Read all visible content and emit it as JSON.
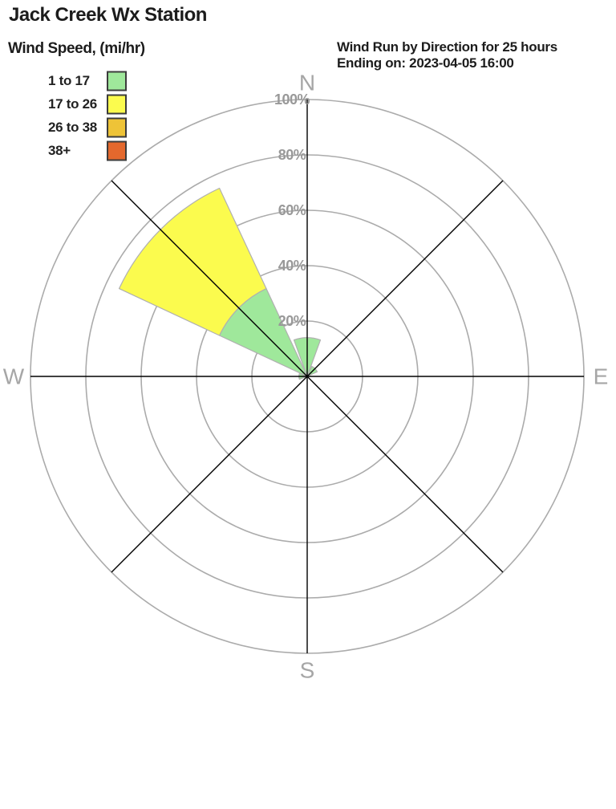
{
  "page": {
    "title": "Jack Creek Wx Station"
  },
  "legend": {
    "title": "Wind Speed, (mi/hr)"
  },
  "chart_data": {
    "type": "wind_rose",
    "title": "Wind Run by Direction for 25 hours",
    "subtitle": "Ending on: 2023-04-05 16:00",
    "units_label": "Wind Speed, (mi/hr)",
    "bins": [
      {
        "label": "1 to 17",
        "color": "#9fe89b"
      },
      {
        "label": "17 to 26",
        "color": "#fbfb4e"
      },
      {
        "label": "26 to 38",
        "color": "#eec337"
      },
      {
        "label": "38+",
        "color": "#e4682d"
      }
    ],
    "ring_ticks_pct": [
      20,
      40,
      60,
      80,
      100
    ],
    "ring_label_suffix": "%",
    "cardinals": [
      {
        "label": "N",
        "bearing": 0
      },
      {
        "label": "E",
        "bearing": 90
      },
      {
        "label": "S",
        "bearing": 180
      },
      {
        "label": "W",
        "bearing": 270
      }
    ],
    "sector_half_width_deg": 20,
    "sectors": [
      {
        "direction": "N",
        "bearing": 0,
        "values_pct": [
          14,
          0,
          0,
          0
        ]
      },
      {
        "direction": "NE",
        "bearing": 45,
        "values_pct": [
          4,
          0,
          0,
          0
        ]
      },
      {
        "direction": "E",
        "bearing": 90,
        "values_pct": [
          0,
          0,
          0,
          0
        ]
      },
      {
        "direction": "SE",
        "bearing": 135,
        "values_pct": [
          0,
          0,
          0,
          0
        ]
      },
      {
        "direction": "S",
        "bearing": 180,
        "values_pct": [
          0,
          0,
          0,
          0
        ]
      },
      {
        "direction": "SW",
        "bearing": 225,
        "values_pct": [
          0,
          0,
          0,
          0
        ]
      },
      {
        "direction": "W",
        "bearing": 270,
        "values_pct": [
          3,
          0,
          0,
          0
        ]
      },
      {
        "direction": "NW",
        "bearing": 315,
        "values_pct": [
          35,
          40,
          0,
          0
        ]
      }
    ],
    "colors": {
      "ring": "#ababab",
      "axis": "#000000",
      "ring_label": "#999999",
      "cardinal_label": "#a6a6a6",
      "wedge_stroke": "#b0b0b0"
    }
  }
}
